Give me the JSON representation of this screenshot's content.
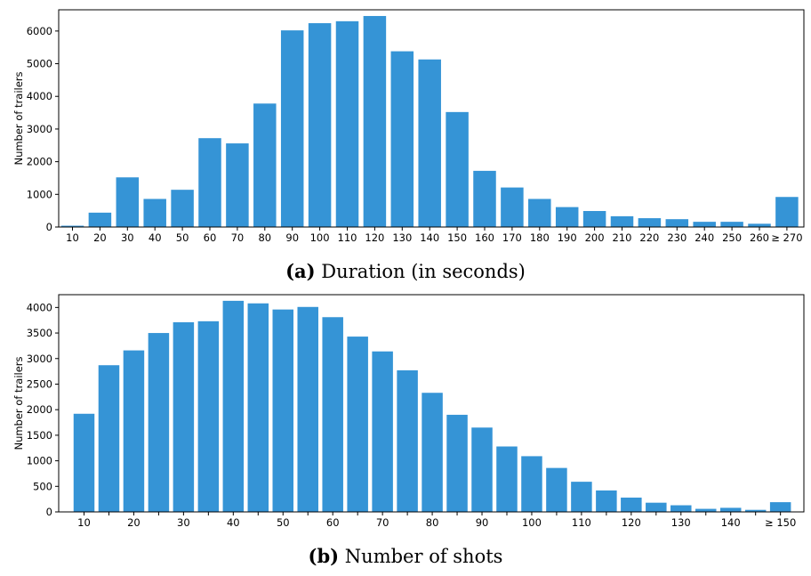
{
  "chart_data": [
    {
      "type": "bar",
      "caption_tag": "(a)",
      "caption_text": "Duration (in seconds)",
      "ylabel": "Number of trailers",
      "ylim": [
        0,
        6650
      ],
      "yticks": [
        0,
        1000,
        2000,
        3000,
        4000,
        5000,
        6000
      ],
      "categories": [
        "10",
        "20",
        "30",
        "40",
        "50",
        "60",
        "70",
        "80",
        "90",
        "100",
        "110",
        "120",
        "130",
        "140",
        "150",
        "160",
        "170",
        "180",
        "190",
        "200",
        "210",
        "220",
        "230",
        "240",
        "250",
        "260",
        "≥ 270"
      ],
      "values": [
        40,
        440,
        1520,
        860,
        1140,
        2720,
        2560,
        3780,
        6020,
        6240,
        6300,
        6460,
        5380,
        5130,
        3520,
        1720,
        1210,
        860,
        610,
        490,
        330,
        270,
        240,
        160,
        160,
        100,
        920
      ],
      "color": "#3594d6"
    },
    {
      "type": "bar",
      "caption_tag": "(b)",
      "caption_text": "Number of shots",
      "ylabel": "Number of trailers",
      "ylim": [
        0,
        4250
      ],
      "yticks": [
        0,
        500,
        1000,
        1500,
        2000,
        2500,
        3000,
        3500,
        4000
      ],
      "categories": [
        "10",
        "15",
        "20",
        "25",
        "30",
        "35",
        "40",
        "45",
        "50",
        "55",
        "60",
        "65",
        "70",
        "75",
        "80",
        "85",
        "90",
        "95",
        "100",
        "105",
        "110",
        "115",
        "120",
        "125",
        "130",
        "135",
        "140",
        "145",
        "≥ 150"
      ],
      "tick_labels": [
        "10",
        "20",
        "30",
        "40",
        "50",
        "60",
        "70",
        "80",
        "90",
        "100",
        "110",
        "120",
        "130",
        "140",
        "≥ 150"
      ],
      "values": [
        1920,
        2870,
        3160,
        3500,
        3710,
        3730,
        4130,
        4080,
        3960,
        4010,
        3810,
        3430,
        3140,
        2770,
        2330,
        1900,
        1650,
        1280,
        1090,
        860,
        590,
        420,
        280,
        180,
        130,
        60,
        80,
        40,
        190
      ],
      "color": "#3594d6"
    }
  ]
}
